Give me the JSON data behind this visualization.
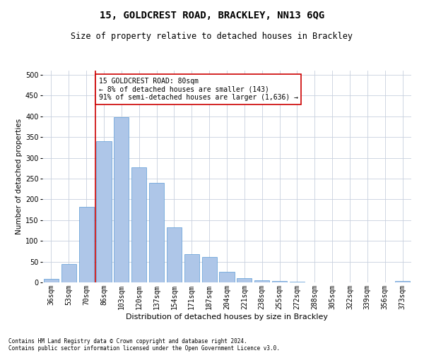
{
  "title1": "15, GOLDCREST ROAD, BRACKLEY, NN13 6QG",
  "title2": "Size of property relative to detached houses in Brackley",
  "xlabel": "Distribution of detached houses by size in Brackley",
  "ylabel": "Number of detached properties",
  "footnote1": "Contains HM Land Registry data © Crown copyright and database right 2024.",
  "footnote2": "Contains public sector information licensed under the Open Government Licence v3.0.",
  "categories": [
    "36sqm",
    "53sqm",
    "70sqm",
    "86sqm",
    "103sqm",
    "120sqm",
    "137sqm",
    "154sqm",
    "171sqm",
    "187sqm",
    "204sqm",
    "221sqm",
    "238sqm",
    "255sqm",
    "272sqm",
    "288sqm",
    "305sqm",
    "322sqm",
    "339sqm",
    "356sqm",
    "373sqm"
  ],
  "values": [
    8,
    45,
    182,
    340,
    397,
    277,
    240,
    133,
    68,
    62,
    25,
    11,
    5,
    4,
    2,
    0,
    0,
    0,
    0,
    0,
    4
  ],
  "bar_color": "#aec6e8",
  "bar_edge_color": "#5b9bd5",
  "vline_color": "#cc0000",
  "annotation_line1": "15 GOLDCREST ROAD: 80sqm",
  "annotation_line2": "← 8% of detached houses are smaller (143)",
  "annotation_line3": "91% of semi-detached houses are larger (1,636) →",
  "annotation_box_color": "#ffffff",
  "annotation_box_edge_color": "#cc0000",
  "ylim": [
    0,
    510
  ],
  "yticks": [
    0,
    50,
    100,
    150,
    200,
    250,
    300,
    350,
    400,
    450,
    500
  ],
  "background_color": "#ffffff",
  "grid_color": "#c8d0de",
  "title1_fontsize": 10,
  "title2_fontsize": 8.5,
  "xlabel_fontsize": 8,
  "ylabel_fontsize": 7.5,
  "tick_fontsize": 7,
  "annotation_fontsize": 7,
  "footnote_fontsize": 5.5
}
